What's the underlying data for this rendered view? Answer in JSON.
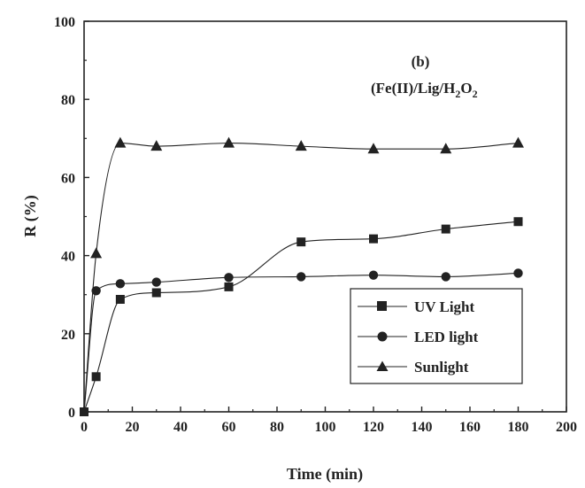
{
  "chart_data": {
    "type": "line",
    "xlabel": "Time (min)",
    "ylabel": "R (%)",
    "xlim": [
      0,
      200
    ],
    "ylim": [
      0,
      100
    ],
    "xticks": [
      0,
      20,
      40,
      60,
      80,
      100,
      120,
      140,
      160,
      180,
      200
    ],
    "yticks": [
      0,
      20,
      40,
      60,
      80,
      100
    ],
    "grid": false,
    "legend_position": "bottom-right",
    "annotations": {
      "panel": "(b)",
      "system_prefix": "(Fe(II)/Lig/H",
      "sub1": "2",
      "mid": "O",
      "sub2": "2"
    },
    "series": [
      {
        "name": "UV Light",
        "marker": "square",
        "x": [
          0,
          5,
          15,
          30,
          60,
          90,
          120,
          150,
          180
        ],
        "y": [
          0,
          9,
          28.8,
          30.5,
          32,
          43.5,
          44.3,
          46.8,
          48.7
        ]
      },
      {
        "name": "LED light",
        "marker": "circle",
        "x": [
          5,
          15,
          30,
          60,
          90,
          120,
          150,
          180
        ],
        "y": [
          31,
          32.8,
          33.2,
          34.4,
          34.6,
          35,
          34.6,
          35.5
        ]
      },
      {
        "name": "Sunlight",
        "marker": "triangle",
        "x": [
          5,
          15,
          30,
          60,
          90,
          120,
          150,
          180
        ],
        "y": [
          40.5,
          68.8,
          68,
          68.8,
          68,
          67.3,
          67.3,
          68.8
        ]
      }
    ]
  }
}
